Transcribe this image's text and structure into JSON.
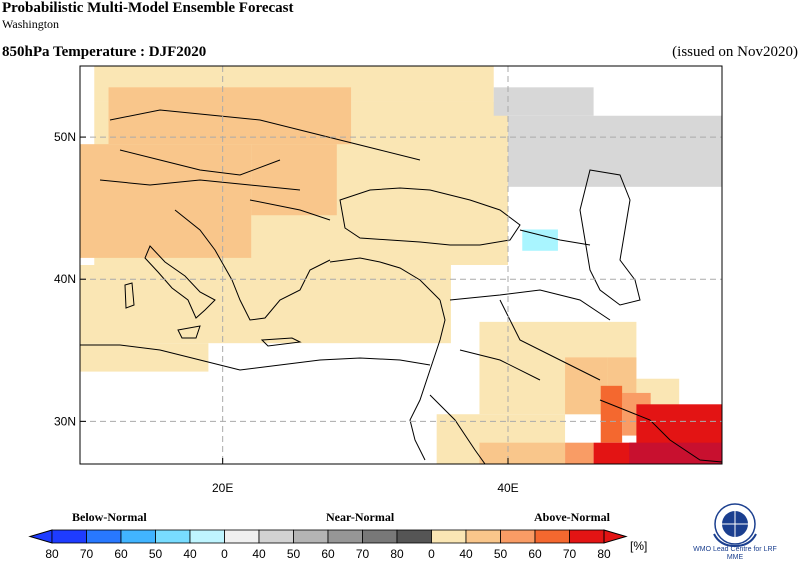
{
  "header": {
    "title": "Probabilistic Multi-Model Ensemble Forecast",
    "subtitle": "Washington",
    "variable": "850hPa Temperature : DJF2020",
    "issued": "(issued on Nov2020)"
  },
  "map": {
    "lon_range": [
      10,
      55
    ],
    "lat_range": [
      27,
      55
    ],
    "lat_ticks": [
      {
        "value": 50,
        "label": "50N"
      },
      {
        "value": 40,
        "label": "40N"
      },
      {
        "value": 30,
        "label": "30N"
      }
    ],
    "lon_ticks": [
      {
        "value": 20,
        "label": "20E"
      },
      {
        "value": 40,
        "label": "40E"
      }
    ],
    "category_colors": {
      "above_40": "#fae6b4",
      "above_50": "#f9c68b",
      "above_60": "#f99c65",
      "above_70": "#f4682f",
      "above_80": "#e31414",
      "above_90": "#c8102f",
      "near_40": "#d7d7d7",
      "below_40": "#a9f5ff"
    },
    "cells": [
      {
        "lon0": 11,
        "lat0": 52.5,
        "lon1": 39,
        "lat1": 55,
        "cat": "above_40"
      },
      {
        "lon0": 11,
        "lat0": 41,
        "lon1": 40,
        "lat1": 52.5,
        "cat": "above_40"
      },
      {
        "lon0": 10,
        "lat0": 35.5,
        "lon1": 36,
        "lat1": 41,
        "cat": "above_40"
      },
      {
        "lon0": 10,
        "lat0": 33.5,
        "lon1": 19,
        "lat1": 35.5,
        "cat": "above_40"
      },
      {
        "lon0": 12,
        "lat0": 49.5,
        "lon1": 29,
        "lat1": 53.5,
        "cat": "above_50"
      },
      {
        "lon0": 10,
        "lat0": 41.5,
        "lon1": 22,
        "lat1": 49.5,
        "cat": "above_50"
      },
      {
        "lon0": 22,
        "lat0": 44.5,
        "lon1": 28,
        "lat1": 49.5,
        "cat": "above_50"
      },
      {
        "lon0": 40,
        "lat0": 46.5,
        "lon1": 55,
        "lat1": 51.5,
        "cat": "near_40"
      },
      {
        "lon0": 39,
        "lat0": 51.5,
        "lon1": 46,
        "lat1": 53.5,
        "cat": "near_40"
      },
      {
        "lon0": 41,
        "lat0": 42,
        "lon1": 43.5,
        "lat1": 43.5,
        "cat": "below_40"
      },
      {
        "lon0": 38,
        "lat0": 30.5,
        "lon1": 49,
        "lat1": 37,
        "cat": "above_40"
      },
      {
        "lon0": 35,
        "lat0": 27,
        "lon1": 44,
        "lat1": 30.5,
        "cat": "above_40"
      },
      {
        "lon0": 49,
        "lat0": 29.5,
        "lon1": 52,
        "lat1": 33,
        "cat": "above_40"
      },
      {
        "lon0": 44,
        "lat0": 30.5,
        "lon1": 47,
        "lat1": 34.5,
        "cat": "above_50"
      },
      {
        "lon0": 38,
        "lat0": 27,
        "lon1": 44,
        "lat1": 28.5,
        "cat": "above_50"
      },
      {
        "lon0": 47,
        "lat0": 31.5,
        "lon1": 49,
        "lat1": 34.5,
        "cat": "above_50"
      },
      {
        "lon0": 44,
        "lat0": 27,
        "lon1": 46,
        "lat1": 28.5,
        "cat": "above_60"
      },
      {
        "lon0": 48,
        "lat0": 29,
        "lon1": 50,
        "lat1": 32,
        "cat": "above_60"
      },
      {
        "lon0": 46.5,
        "lat0": 28.5,
        "lon1": 48,
        "lat1": 32.5,
        "cat": "above_70"
      },
      {
        "lon0": 46,
        "lat0": 27,
        "lon1": 49,
        "lat1": 28.5,
        "cat": "above_80"
      },
      {
        "lon0": 49,
        "lat0": 27,
        "lon1": 55,
        "lat1": 31.2,
        "cat": "above_80"
      },
      {
        "lon0": 48.5,
        "lat0": 26.8,
        "lon1": 55,
        "lat1": 28.5,
        "cat": "above_90"
      }
    ]
  },
  "legend": {
    "groups": [
      {
        "label": "Below-Normal"
      },
      {
        "label": "Near-Normal"
      },
      {
        "label": "Above-Normal"
      }
    ],
    "tick_labels": [
      "80",
      "70",
      "60",
      "50",
      "40",
      "0",
      "40",
      "50",
      "60",
      "70",
      "80",
      "0",
      "40",
      "50",
      "60",
      "70",
      "80"
    ],
    "unit": "[%]",
    "below_colors": [
      "#1e3cff",
      "#2878ff",
      "#41b4ff",
      "#78dcff",
      "#bff5ff"
    ],
    "near_colors": [
      "#f0f0f0",
      "#d2d2d2",
      "#b4b4b4",
      "#969696",
      "#787878",
      "#555555"
    ],
    "above_colors": [
      "#fae6b4",
      "#f9c68b",
      "#f99c65",
      "#f4682f",
      "#e31414"
    ],
    "logo_text": "WMO Lead Centre for LRF MME"
  }
}
